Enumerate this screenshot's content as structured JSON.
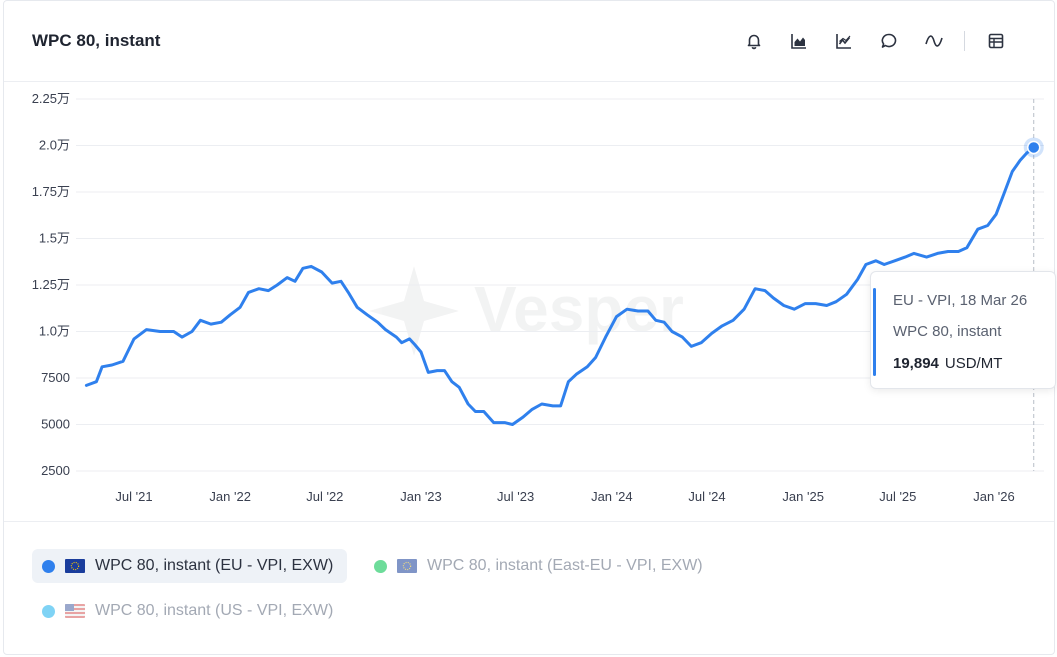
{
  "title": "WPC 80, instant",
  "toolbar": {
    "icons": [
      "bell-icon",
      "area-chart-icon",
      "line-chart-icon",
      "comment-icon",
      "wave-icon",
      "table-icon"
    ]
  },
  "watermark": "Vesper",
  "chart_data": {
    "type": "line",
    "y_ticks": [
      "2.25万",
      "2.0万",
      "1.75万",
      "1.5万",
      "1.25万",
      "1.0万",
      "7500",
      "5000",
      "2500"
    ],
    "y_tick_values": [
      22500,
      20000,
      17500,
      15000,
      12500,
      10000,
      7500,
      5000,
      2500
    ],
    "x_ticks": [
      "Jul '21",
      "Jan '22",
      "Jul '22",
      "Jan '23",
      "Jul '23",
      "Jan '24",
      "Jul '24",
      "Jan '25",
      "Jul '25",
      "Jan '26"
    ],
    "x_tick_dates": [
      "2021-07-01",
      "2022-01-01",
      "2022-07-01",
      "2023-01-01",
      "2023-07-01",
      "2024-01-01",
      "2024-07-01",
      "2025-01-01",
      "2025-07-01",
      "2026-01-01"
    ],
    "ylim": [
      2500,
      22500
    ],
    "grid": true,
    "series": [
      {
        "name": "WPC 80, instant (EU - VPI, EXW)",
        "color": "#2f80ed",
        "points": [
          [
            "2021-04-01",
            7100
          ],
          [
            "2021-04-20",
            7300
          ],
          [
            "2021-05-01",
            8100
          ],
          [
            "2021-05-20",
            8200
          ],
          [
            "2021-06-10",
            8400
          ],
          [
            "2021-07-01",
            9600
          ],
          [
            "2021-07-25",
            10100
          ],
          [
            "2021-08-20",
            10000
          ],
          [
            "2021-09-15",
            10000
          ],
          [
            "2021-10-01",
            9700
          ],
          [
            "2021-10-20",
            10000
          ],
          [
            "2021-11-05",
            10600
          ],
          [
            "2021-11-25",
            10400
          ],
          [
            "2021-12-15",
            10500
          ],
          [
            "2022-01-01",
            10900
          ],
          [
            "2022-01-20",
            11300
          ],
          [
            "2022-02-05",
            12100
          ],
          [
            "2022-02-25",
            12300
          ],
          [
            "2022-03-15",
            12200
          ],
          [
            "2022-04-01",
            12500
          ],
          [
            "2022-04-20",
            12900
          ],
          [
            "2022-05-05",
            12700
          ],
          [
            "2022-05-20",
            13400
          ],
          [
            "2022-06-05",
            13500
          ],
          [
            "2022-06-25",
            13200
          ],
          [
            "2022-07-15",
            12600
          ],
          [
            "2022-08-01",
            12700
          ],
          [
            "2022-08-15",
            12100
          ],
          [
            "2022-09-01",
            11300
          ],
          [
            "2022-09-20",
            10900
          ],
          [
            "2022-10-10",
            10500
          ],
          [
            "2022-10-25",
            10100
          ],
          [
            "2022-11-15",
            9700
          ],
          [
            "2022-11-25",
            9400
          ],
          [
            "2022-12-10",
            9600
          ],
          [
            "2022-12-20",
            9300
          ],
          [
            "2023-01-01",
            8900
          ],
          [
            "2023-01-15",
            7800
          ],
          [
            "2023-02-01",
            7900
          ],
          [
            "2023-02-15",
            7900
          ],
          [
            "2023-03-01",
            7300
          ],
          [
            "2023-03-15",
            7000
          ],
          [
            "2023-04-01",
            6100
          ],
          [
            "2023-04-15",
            5700
          ],
          [
            "2023-05-01",
            5700
          ],
          [
            "2023-05-20",
            5100
          ],
          [
            "2023-06-10",
            5100
          ],
          [
            "2023-06-25",
            5000
          ],
          [
            "2023-07-15",
            5400
          ],
          [
            "2023-08-01",
            5800
          ],
          [
            "2023-08-20",
            6100
          ],
          [
            "2023-09-10",
            6000
          ],
          [
            "2023-09-25",
            6000
          ],
          [
            "2023-10-10",
            7300
          ],
          [
            "2023-10-25",
            7700
          ],
          [
            "2023-11-15",
            8100
          ],
          [
            "2023-12-01",
            8600
          ],
          [
            "2023-12-20",
            9700
          ],
          [
            "2024-01-10",
            10800
          ],
          [
            "2024-01-30",
            11200
          ],
          [
            "2024-02-20",
            11100
          ],
          [
            "2024-03-10",
            11100
          ],
          [
            "2024-03-25",
            10600
          ],
          [
            "2024-04-10",
            10500
          ],
          [
            "2024-04-25",
            10000
          ],
          [
            "2024-05-15",
            9700
          ],
          [
            "2024-06-01",
            9200
          ],
          [
            "2024-06-20",
            9400
          ],
          [
            "2024-07-10",
            9900
          ],
          [
            "2024-07-30",
            10300
          ],
          [
            "2024-08-20",
            10600
          ],
          [
            "2024-09-10",
            11200
          ],
          [
            "2024-10-01",
            12300
          ],
          [
            "2024-10-20",
            12200
          ],
          [
            "2024-11-05",
            11800
          ],
          [
            "2024-11-25",
            11400
          ],
          [
            "2024-12-15",
            11200
          ],
          [
            "2025-01-05",
            11500
          ],
          [
            "2025-01-25",
            11500
          ],
          [
            "2025-02-15",
            11400
          ],
          [
            "2025-03-05",
            11600
          ],
          [
            "2025-03-25",
            12000
          ],
          [
            "2025-04-15",
            12800
          ],
          [
            "2025-05-01",
            13600
          ],
          [
            "2025-05-20",
            13800
          ],
          [
            "2025-06-05",
            13600
          ],
          [
            "2025-06-25",
            13800
          ],
          [
            "2025-07-15",
            14000
          ],
          [
            "2025-08-01",
            14200
          ],
          [
            "2025-08-25",
            14000
          ],
          [
            "2025-09-15",
            14200
          ],
          [
            "2025-10-05",
            14300
          ],
          [
            "2025-10-25",
            14300
          ],
          [
            "2025-11-10",
            14500
          ],
          [
            "2025-12-01",
            15500
          ],
          [
            "2025-12-20",
            15700
          ],
          [
            "2026-01-05",
            16300
          ],
          [
            "2026-01-20",
            17400
          ],
          [
            "2026-02-05",
            18600
          ],
          [
            "2026-02-20",
            19200
          ],
          [
            "2026-03-05",
            19600
          ],
          [
            "2026-03-18",
            19894
          ]
        ]
      }
    ]
  },
  "tooltip": {
    "series_label": "EU - VPI, 18 Mar 26",
    "product": "WPC 80, instant",
    "value": "19,894",
    "unit": "USD/MT"
  },
  "legend": [
    {
      "label": "WPC 80, instant (EU - VPI, EXW)",
      "color": "#2f80ed",
      "flag": "eu-flag-icon",
      "active": true
    },
    {
      "label": "WPC 80, instant (East-EU - VPI, EXW)",
      "color": "#6ddc9a",
      "flag": "eu-flag-icon",
      "active": false
    },
    {
      "label": "WPC 80, instant (US - VPI, EXW)",
      "color": "#7fd3f5",
      "flag": "us-flag-icon",
      "active": false
    }
  ]
}
